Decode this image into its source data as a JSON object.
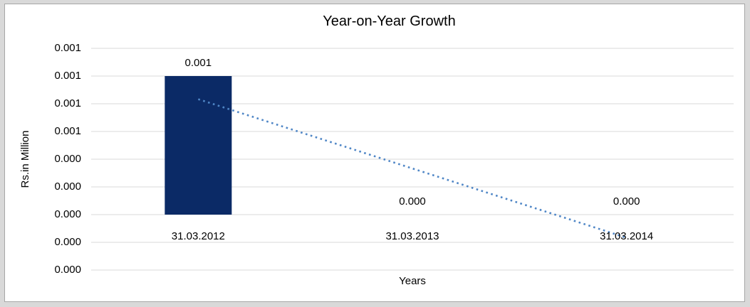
{
  "chart_data": {
    "type": "bar",
    "title": "Year-on-Year Growth",
    "xlabel": "Years",
    "ylabel": "Rs.in Million",
    "categories": [
      "31.03.2012",
      "31.03.2013",
      "31.03.2014"
    ],
    "series": [
      {
        "name": "Year-on-Year Growth",
        "values": [
          0.001,
          0.0,
          0.0
        ]
      }
    ],
    "data_labels": [
      "0.001",
      "0.000",
      "0.000"
    ],
    "y_tick_labels": [
      "0.001",
      "0.001",
      "0.001",
      "0.001",
      "0.000",
      "0.000",
      "0.000",
      "0.000",
      "0.000"
    ],
    "y_axis": {
      "min": -0.0004,
      "max": 0.0012,
      "step": 0.0002
    },
    "trendline": {
      "kind": "linear",
      "style": "dotted",
      "start_value": 0.000833,
      "end_value": -0.000167
    },
    "grid": true,
    "legend": false,
    "colors": {
      "bar": "#0b2a66",
      "trendline": "#4f86c6",
      "gridline": "#d9d9d9",
      "frame_border": "#a6a6a6",
      "frame_outer": "#d9d9d9",
      "background": "#ffffff",
      "text": "#000000"
    }
  }
}
